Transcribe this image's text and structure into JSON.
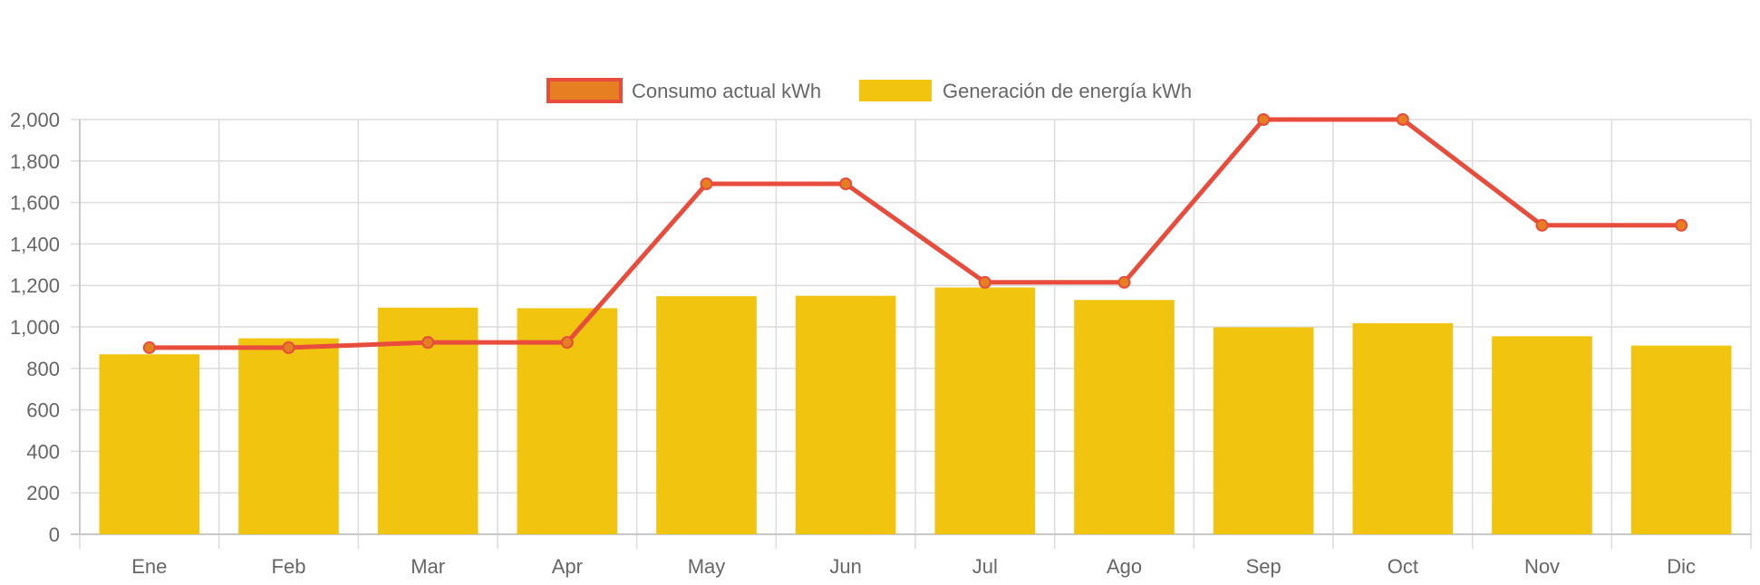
{
  "chart_data": {
    "type": "bar",
    "categories": [
      "Ene",
      "Feb",
      "Mar",
      "Apr",
      "May",
      "Jun",
      "Jul",
      "Ago",
      "Sep",
      "Oct",
      "Nov",
      "Dic"
    ],
    "series": [
      {
        "name": "Consumo actual kWh",
        "type": "line",
        "color": "#e74c3c",
        "point_color": "#e67e22",
        "values": [
          900,
          900,
          925,
          925,
          1690,
          1690,
          1215,
          1215,
          2000,
          2000,
          1490,
          1490
        ]
      },
      {
        "name": "Generación de energía kWh",
        "type": "bar",
        "color": "#f1c40f",
        "values": [
          868,
          945,
          1093,
          1090,
          1148,
          1150,
          1190,
          1130,
          998,
          1018,
          955,
          910
        ]
      }
    ],
    "ylim": [
      0,
      2000
    ],
    "yticks": [
      0,
      200,
      400,
      600,
      800,
      1000,
      1200,
      1400,
      1600,
      1800,
      2000
    ],
    "ytick_labels": [
      "0",
      "200",
      "400",
      "600",
      "800",
      "1,000",
      "1,200",
      "1,400",
      "1,600",
      "1,800",
      "2,000"
    ],
    "grid": true,
    "legend_position": "top-center",
    "title": "",
    "xlabel": "",
    "ylabel": ""
  }
}
